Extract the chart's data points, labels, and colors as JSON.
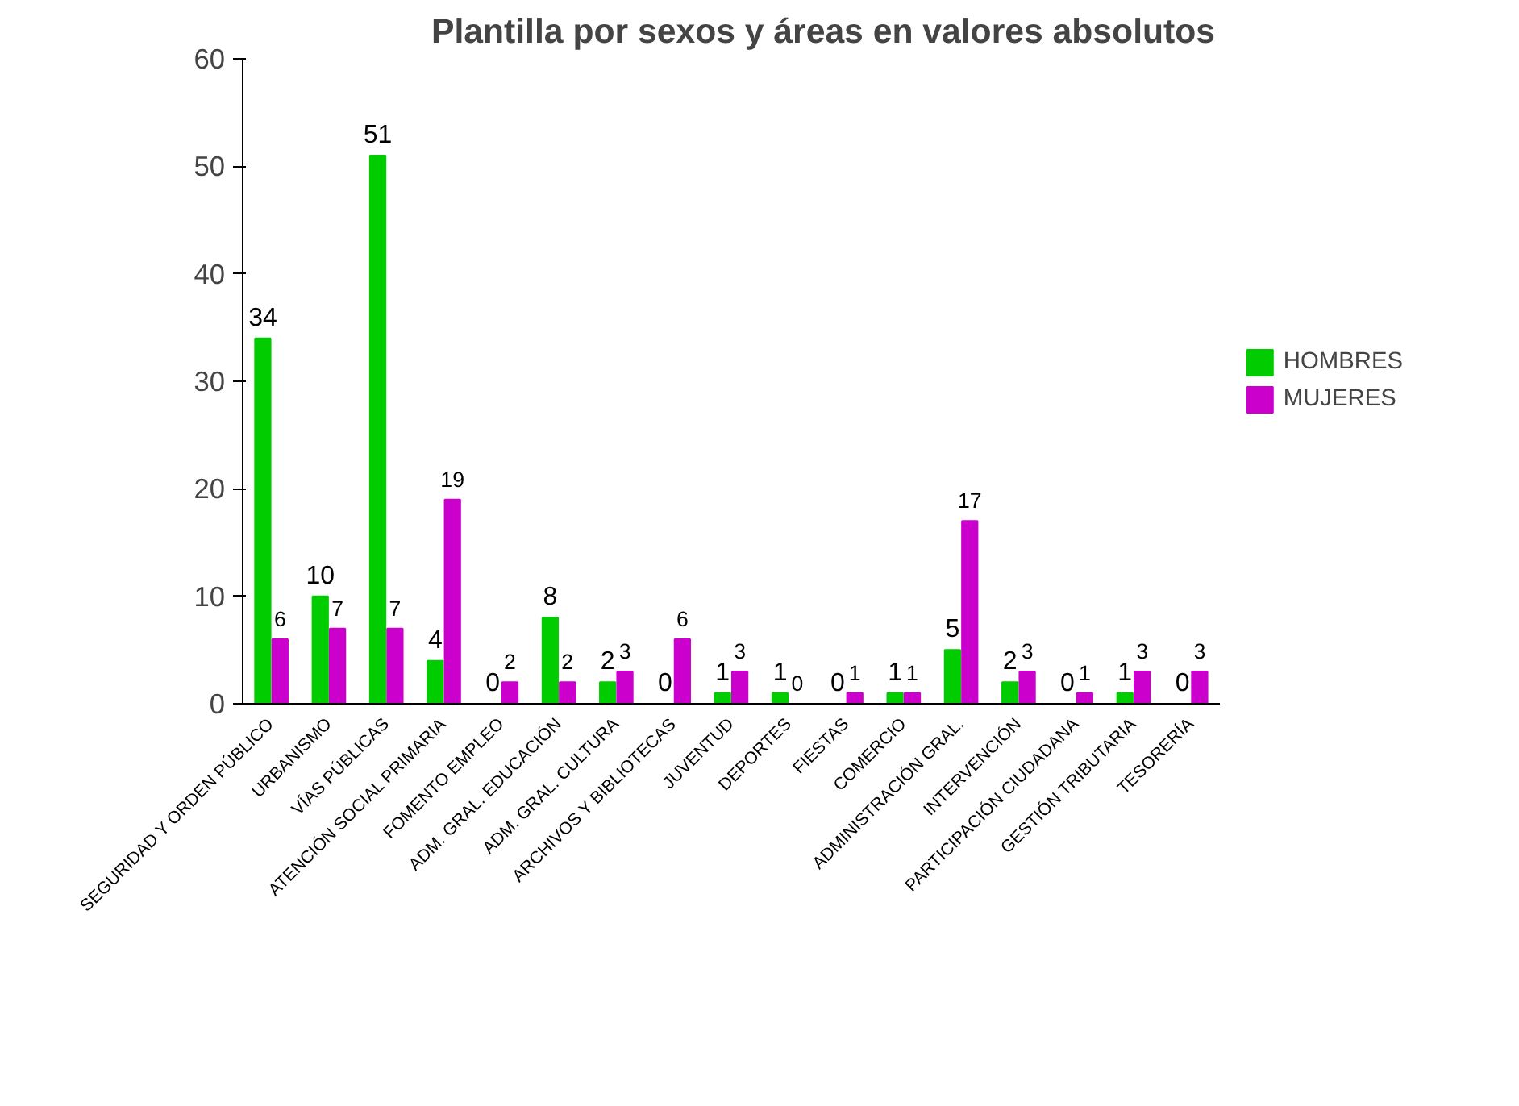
{
  "chart_data": {
    "type": "bar",
    "title": "Plantilla por sexos y áreas en valores absolutos",
    "categories": [
      "SEGURIDAD Y ORDEN PÚBLICO",
      "URBANISMO",
      "VÍAS PÚBLICAS",
      "ATENCIÓN SOCIAL PRIMARIA",
      "FOMENTO EMPLEO",
      "ADM. GRAL. EDUCACIÓN",
      "ADM. GRAL. CULTURA",
      "ARCHIVOS Y BIBLIOTECAS",
      "JUVENTUD",
      "DEPORTES",
      "FIESTAS",
      "COMERCIO",
      "ADMINISTRACIÓN GRAL.",
      "INTERVENCIÓN",
      "PARTICIPACIÓN CIUDADANA",
      "GESTIÓN TRIBUTARIA",
      "TESORERÍA"
    ],
    "series": [
      {
        "name": "HOMBRES",
        "color": "#00cc00",
        "values": [
          34,
          10,
          51,
          4,
          0,
          8,
          2,
          0,
          1,
          1,
          0,
          1,
          5,
          2,
          0,
          1,
          0
        ]
      },
      {
        "name": "MUJERES",
        "color": "#cc00cc",
        "values": [
          6,
          7,
          7,
          19,
          2,
          2,
          3,
          6,
          3,
          0,
          1,
          1,
          17,
          3,
          1,
          3,
          3
        ]
      }
    ],
    "ylim": [
      0,
      60
    ],
    "yticks": [
      0,
      10,
      20,
      30,
      40,
      50,
      60
    ],
    "grid": false,
    "legend": "right",
    "data_labels": true
  }
}
